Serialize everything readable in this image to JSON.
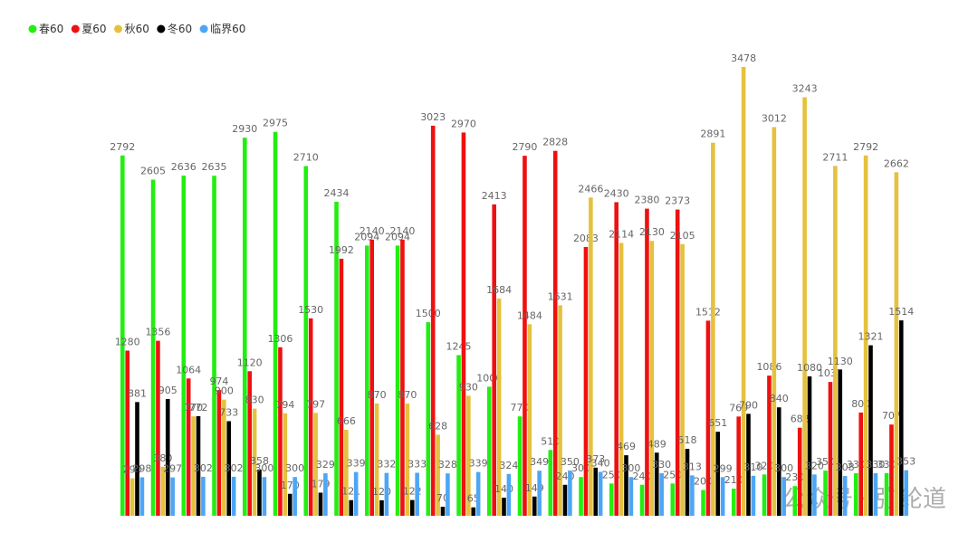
{
  "chart_data": {
    "type": "bar",
    "categories": [
      null,
      null,
      null,
      null,
      null,
      null,
      null,
      null,
      null,
      null,
      null,
      null,
      null,
      null,
      null,
      null,
      null,
      null,
      null,
      null,
      null,
      null,
      null,
      null,
      null,
      null
    ],
    "series": [
      {
        "name": "春60",
        "color": "#22ee11",
        "values": [
          2792,
          2605,
          2636,
          2635,
          2930,
          2975,
          2710,
          2434,
          2094,
          2094,
          1500,
          1245,
          1000,
          770,
          510,
          300,
          250,
          240,
          250,
          200,
          210,
          320,
          230,
          350,
          330,
          330
        ]
      },
      {
        "name": "夏60",
        "color": "#ee1111",
        "values": [
          1280,
          1356,
          1064,
          974,
          1120,
          1306,
          1530,
          1992,
          2140,
          2140,
          3023,
          2970,
          2413,
          2790,
          2828,
          2083,
          2430,
          2380,
          2373,
          1512,
          769,
          1086,
          682,
          1037,
          800,
          707
        ]
      },
      {
        "name": "秋60",
        "color": "#e5c13e",
        "values": [
          290,
          380,
          770,
          900,
          830,
          794,
          797,
          666,
          870,
          870,
          628,
          930,
          1684,
          1484,
          1631,
          2466,
          2114,
          2130,
          2105,
          2891,
          3478,
          3012,
          3243,
          2711,
          2792,
          2662
        ]
      },
      {
        "name": "冬60",
        "color": "#000000",
        "values": [
          881,
          905,
          772,
          733,
          358,
          170,
          179,
          121,
          120,
          122,
          70,
          65,
          140,
          149,
          240,
          373,
          469,
          489,
          518,
          651,
          790,
          840,
          1080,
          1130,
          1321,
          1514
        ]
      },
      {
        "name": "临界60",
        "color": "#4da6f5",
        "values": [
          298,
          297,
          302,
          302,
          300,
          300,
          329,
          339,
          332,
          333,
          328,
          339,
          324,
          349,
          350,
          340,
          300,
          330,
          313,
          299,
          310,
          300,
          320,
          308,
          330,
          353
        ]
      }
    ],
    "watermark": "公众号 · 弥纶道"
  }
}
